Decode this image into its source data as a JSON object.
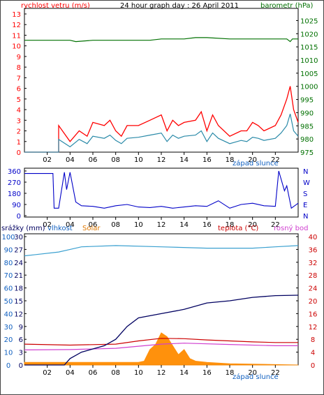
{
  "header": {
    "title": "24 hour graph day : 26 April 2011",
    "left_label": "rychlost vetru (m/s)",
    "right_label": "barometr (hPa)"
  },
  "bottom_header": {
    "rain": "srážky (mm)",
    "humidity": "vlhkost",
    "solar": "Solar",
    "temp": "teplota (°C)",
    "dew": "rosný bod"
  },
  "sunset_label": "západ slunce",
  "colors": {
    "gust": "#ff0000",
    "wind": "#2a8aa8",
    "baro": "#007000",
    "dir": "#0000c8",
    "humidity": "#3aa0d0",
    "solar": "#ff8c00",
    "temp": "#cc0000",
    "dew": "#d040d0",
    "rain": "#000060",
    "bluetext": "#1060c0",
    "orangetext": "#e07800"
  },
  "chart_data": [
    {
      "type": "line",
      "name": "wind-pressure",
      "x_ticks": [
        "02",
        "04",
        "06",
        "08",
        "10",
        "12",
        "14",
        "16",
        "18",
        "20",
        "22"
      ],
      "y_left_ticks": [
        "0",
        "1",
        "2",
        "3",
        "4",
        "5",
        "6",
        "7",
        "8",
        "9",
        "10",
        "11",
        "12",
        "13"
      ],
      "y_left_lim": [
        0,
        13
      ],
      "y_right_ticks": [
        "975",
        "980",
        "985",
        "990",
        "995",
        "1000",
        "1005",
        "1010",
        "1015",
        "1020",
        "1025"
      ],
      "y_right_lim": [
        975,
        1027.5
      ],
      "series": [
        {
          "key": "gust",
          "x": [
            0,
            3,
            3,
            4,
            4.8,
            5.5,
            6,
            7,
            7.5,
            8,
            8.5,
            9,
            10,
            11,
            12,
            12.5,
            13,
            13.5,
            14,
            15,
            15.5,
            16,
            16.5,
            17,
            18,
            19,
            19.5,
            20,
            20.5,
            21,
            22,
            22.5,
            23,
            23.3,
            23.6,
            24
          ],
          "values": [
            0,
            0,
            2.5,
            1,
            2,
            1.5,
            2.8,
            2.5,
            3,
            2,
            1.5,
            2.5,
            2.5,
            3,
            3.5,
            2,
            3,
            2.5,
            2.8,
            3,
            3.8,
            2,
            3.5,
            2.5,
            1.5,
            2,
            2,
            2.8,
            2.5,
            2,
            2.5,
            3.5,
            5,
            6.2,
            4,
            2.8
          ]
        },
        {
          "key": "wind",
          "x": [
            0,
            3,
            3,
            4,
            4.8,
            5.5,
            6,
            7,
            7.5,
            8,
            8.5,
            9,
            10,
            11,
            12,
            12.5,
            13,
            13.5,
            14,
            15,
            15.5,
            16,
            16.5,
            17,
            18,
            19,
            19.5,
            20,
            20.5,
            21,
            22,
            22.5,
            23,
            23.3,
            23.6,
            24
          ],
          "values": [
            0,
            0,
            1.2,
            0.5,
            1.2,
            0.8,
            1.5,
            1.3,
            1.6,
            1.1,
            0.8,
            1.3,
            1.4,
            1.6,
            1.8,
            1,
            1.6,
            1.3,
            1.5,
            1.6,
            2,
            1,
            1.8,
            1.3,
            0.8,
            1.1,
            1,
            1.4,
            1.3,
            1.1,
            1.3,
            1.8,
            2.5,
            3.6,
            2,
            1.5
          ]
        },
        {
          "key": "pressure",
          "x": [
            0,
            4,
            4.5,
            6,
            9,
            11,
            12,
            14,
            15,
            16,
            18,
            20,
            21,
            23,
            23.3,
            23.5,
            24
          ],
          "values": [
            1017.5,
            1017.5,
            1017,
            1017.5,
            1017.5,
            1017.5,
            1018,
            1018,
            1018.5,
            1018.5,
            1018,
            1018,
            1018,
            1018,
            1017,
            1018,
            1018
          ]
        }
      ]
    },
    {
      "type": "line",
      "name": "wind-direction",
      "x_ticks": [
        "02",
        "04",
        "06",
        "08",
        "10",
        "12",
        "14",
        "16",
        "18",
        "20",
        "22"
      ],
      "y_left_ticks": [
        "0",
        "90",
        "180",
        "270",
        "360"
      ],
      "y_left_lim": [
        0,
        360
      ],
      "y_right_ticks": [
        "N",
        "E",
        "S",
        "W",
        "N"
      ],
      "series": [
        {
          "key": "direction",
          "x": [
            0,
            2.5,
            2.6,
            3,
            3.5,
            3.7,
            4,
            4.5,
            5,
            6,
            7,
            8,
            9,
            10,
            11,
            12,
            13,
            14,
            15,
            16,
            17,
            18,
            19,
            20,
            21,
            22,
            22.3,
            22.8,
            23,
            23.4,
            24
          ],
          "values": [
            340,
            340,
            60,
            60,
            350,
            210,
            350,
            110,
            80,
            75,
            60,
            80,
            90,
            70,
            65,
            75,
            60,
            70,
            80,
            75,
            120,
            60,
            90,
            100,
            80,
            75,
            360,
            200,
            240,
            60,
            100
          ]
        }
      ]
    },
    {
      "type": "line",
      "name": "rain-humidity-temp",
      "x_ticks": [
        "02",
        "04",
        "06",
        "08",
        "10",
        "12",
        "14",
        "16",
        "18",
        "20",
        "22"
      ],
      "y_left_ticks": [
        "0",
        "10",
        "20",
        "30",
        "40",
        "50",
        "60",
        "70",
        "80",
        "90",
        "100"
      ],
      "y_left_lim": [
        0,
        100
      ],
      "y_rain_ticks": [
        "0",
        "3",
        "6",
        "9",
        "12",
        "15",
        "18",
        "21",
        "24",
        "27",
        "30"
      ],
      "y_rain_lim": [
        0,
        30
      ],
      "y_right_ticks": [
        "0",
        "4",
        "8",
        "12",
        "16",
        "20",
        "24",
        "28",
        "32",
        "36",
        "40"
      ],
      "y_right_lim": [
        0,
        40
      ],
      "series": [
        {
          "key": "humidity",
          "x": [
            0,
            1,
            3,
            4,
            5,
            8,
            12,
            16,
            20,
            22,
            24
          ],
          "values": [
            85,
            86,
            88,
            90,
            92,
            93,
            92,
            91,
            91,
            92,
            93
          ]
        },
        {
          "key": "solar",
          "x": [
            0,
            10,
            10.5,
            11,
            11.5,
            12,
            12.5,
            13,
            13.5,
            14,
            14.5,
            15,
            16,
            18,
            24
          ],
          "values": [
            2,
            2,
            3,
            12,
            16,
            25,
            22,
            15,
            8,
            12,
            5,
            3,
            2,
            1,
            0
          ]
        },
        {
          "key": "temperature",
          "x": [
            0,
            4,
            8,
            10,
            12,
            14,
            16,
            18,
            20,
            22,
            24
          ],
          "values": [
            6.5,
            6.2,
            6.5,
            7.5,
            8.3,
            8.2,
            7.8,
            7.5,
            7.2,
            7,
            7
          ]
        },
        {
          "key": "dew",
          "x": [
            0,
            4,
            8,
            12,
            14,
            18,
            22,
            24
          ],
          "values": [
            4.7,
            4.8,
            5.2,
            6.5,
            6.8,
            6.4,
            6,
            6
          ]
        },
        {
          "key": "rain",
          "x": [
            0,
            3.5,
            4,
            5,
            7,
            8,
            9,
            10,
            12,
            14,
            16,
            18,
            20,
            22,
            24
          ],
          "values": [
            0,
            0,
            1.5,
            3,
            4.5,
            6,
            9,
            11,
            12,
            13,
            14.5,
            15,
            15.8,
            16.2,
            16.3
          ]
        }
      ]
    }
  ]
}
